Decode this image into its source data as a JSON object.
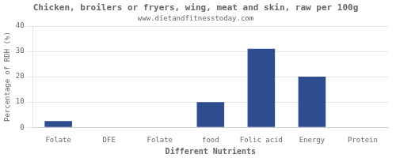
{
  "chart_data": {
    "type": "bar",
    "title": "Chicken, broilers or fryers, wing, meat and skin, raw per 100g",
    "subtitle": "www.dietandfitnesstoday.com",
    "xlabel": "Different Nutrients",
    "ylabel": "Percentage of RDH (%)",
    "categories": [
      "Folate",
      "DFE",
      "Folate",
      "food",
      "Folic acid",
      "Energy",
      "Protein"
    ],
    "values": [
      2.5,
      0,
      0,
      10,
      31,
      20,
      0
    ],
    "color": "#2e4d8e",
    "ylim": [
      0,
      40
    ],
    "yticks": [
      0,
      10,
      20,
      30,
      40
    ],
    "grid": true
  }
}
